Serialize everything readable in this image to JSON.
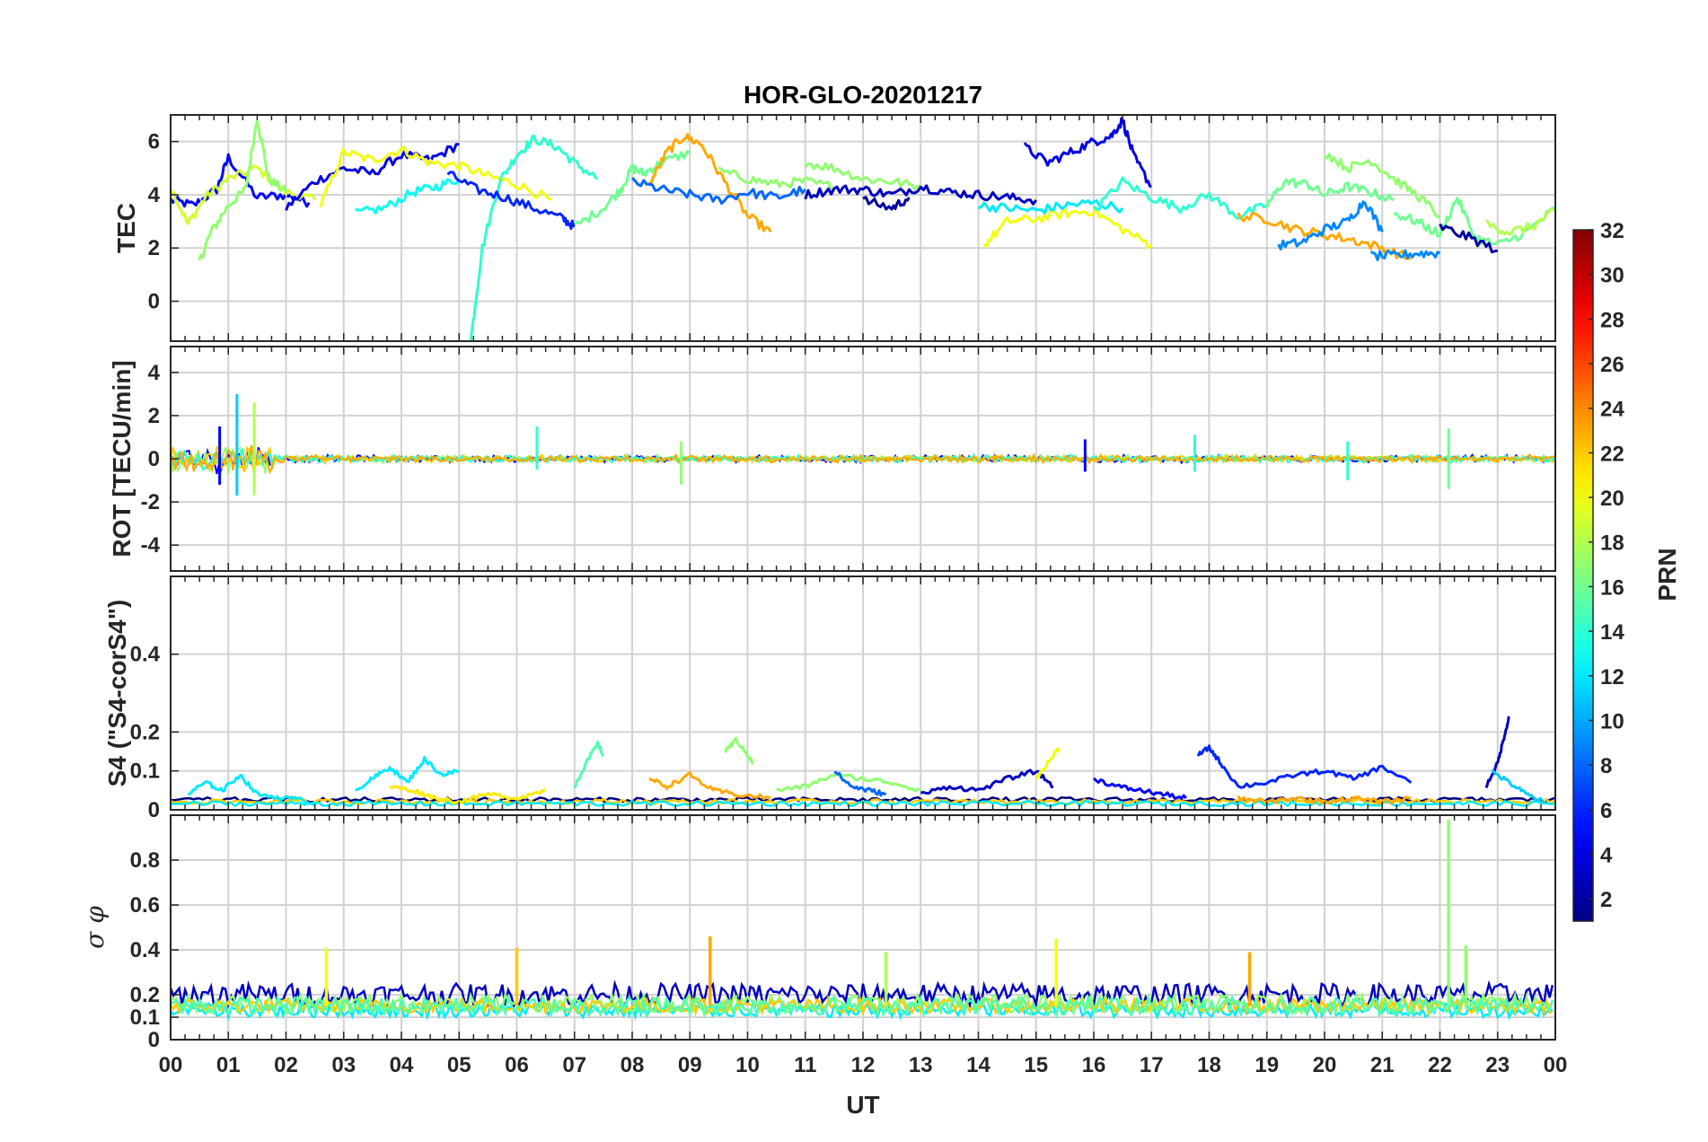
{
  "chart_data": {
    "type": "line",
    "title": "HOR-GLO-20201217",
    "xlabel": "UT",
    "x_unit": "hour",
    "x_tick_labels": [
      "00",
      "01",
      "02",
      "03",
      "04",
      "05",
      "06",
      "07",
      "08",
      "09",
      "10",
      "11",
      "12",
      "13",
      "14",
      "15",
      "16",
      "17",
      "18",
      "19",
      "20",
      "21",
      "22",
      "23",
      "00"
    ],
    "colorbar": {
      "label": "PRN",
      "range": [
        1,
        32
      ],
      "tick_labels": [
        "2",
        "4",
        "6",
        "8",
        "10",
        "12",
        "14",
        "16",
        "18",
        "20",
        "22",
        "24",
        "26",
        "28",
        "30",
        "32"
      ],
      "colormap": "jet"
    },
    "panels": [
      {
        "name": "tec",
        "ylabel": "TEC",
        "ylim": [
          -1.5,
          7
        ],
        "yticks": [
          0,
          2,
          4,
          6
        ],
        "ytick_labels": [
          "0",
          "2",
          "4",
          "6"
        ],
        "series": [
          {
            "prn": 5,
            "x": [
              0.0,
              0.4,
              0.8,
              1.0,
              1.5,
              2.0,
              2.4
            ],
            "y": [
              3.8,
              3.6,
              4.2,
              5.4,
              3.9,
              4.0,
              3.7
            ]
          },
          {
            "prn": 19,
            "x": [
              0.0,
              0.3,
              0.6,
              1.0,
              1.5,
              2.0,
              2.5
            ],
            "y": [
              4.3,
              2.9,
              3.9,
              4.6,
              5.0,
              4.1,
              3.8
            ]
          },
          {
            "prn": 17,
            "x": [
              0.5,
              0.7,
              1.0,
              1.3,
              1.5,
              1.7,
              2.0
            ],
            "y": [
              1.5,
              2.6,
              3.6,
              4.2,
              6.9,
              4.6,
              4.1
            ]
          },
          {
            "prn": 4,
            "x": [
              2.0,
              2.5,
              3.0,
              3.5,
              4.0,
              4.5,
              5.0
            ],
            "y": [
              3.5,
              4.5,
              5.0,
              4.8,
              5.5,
              5.3,
              5.9
            ]
          },
          {
            "prn": 20,
            "x": [
              2.6,
              3.0,
              3.5,
              4.0,
              4.5,
              5.0,
              5.5,
              6.0,
              6.6
            ],
            "y": [
              3.6,
              5.6,
              5.3,
              5.7,
              5.2,
              5.1,
              4.7,
              4.4,
              3.8
            ]
          },
          {
            "prn": 13,
            "x": [
              3.2,
              3.7,
              4.2,
              4.6,
              5.0
            ],
            "y": [
              3.3,
              3.5,
              4.1,
              4.3,
              4.6
            ]
          },
          {
            "prn": 14,
            "x": [
              5.2,
              5.4,
              5.7,
              6.0,
              6.3,
              6.7,
              7.0,
              7.4
            ],
            "y": [
              -1.5,
              2.0,
              4.5,
              5.5,
              6.1,
              5.8,
              5.2,
              4.6
            ]
          },
          {
            "prn": 6,
            "x": [
              4.8,
              5.3,
              5.8,
              6.3,
              6.8,
              7.0
            ],
            "y": [
              4.8,
              4.2,
              3.9,
              3.5,
              3.1,
              2.8
            ]
          },
          {
            "prn": 16,
            "x": [
              7.0,
              7.5,
              7.8,
              8.0,
              8.2,
              8.5,
              9.0
            ],
            "y": [
              2.8,
              3.5,
              4.2,
              5.0,
              4.8,
              5.2,
              5.6
            ]
          },
          {
            "prn": 23,
            "x": [
              8.3,
              8.6,
              8.9,
              9.2,
              9.6,
              10.0,
              10.4
            ],
            "y": [
              4.4,
              5.6,
              6.2,
              5.9,
              4.5,
              3.2,
              2.6
            ]
          },
          {
            "prn": 8,
            "x": [
              8.0,
              8.5,
              9.0,
              9.5,
              10.0,
              10.5,
              11.0
            ],
            "y": [
              4.5,
              4.2,
              4.0,
              3.8,
              4.1,
              3.9,
              4.2
            ]
          },
          {
            "prn": 17,
            "x": [
              9.5,
              10.0,
              10.5,
              11.0,
              11.5
            ],
            "y": [
              4.9,
              4.6,
              4.4,
              4.5,
              4.3
            ]
          },
          {
            "prn": 17,
            "x": [
              11.0,
              11.5,
              12.0,
              12.5,
              13.0
            ],
            "y": [
              5.2,
              5.0,
              4.6,
              4.5,
              4.3
            ]
          },
          {
            "prn": 3,
            "x": [
              11.0,
              11.5,
              12.0,
              12.5,
              13.0,
              13.5,
              14.0,
              14.5,
              15.0
            ],
            "y": [
              4.0,
              4.2,
              4.2,
              4.0,
              4.3,
              4.1,
              4.0,
              3.9,
              3.8
            ]
          },
          {
            "prn": 2,
            "x": [
              12.0,
              12.5,
              12.8
            ],
            "y": [
              3.8,
              3.5,
              3.9
            ]
          },
          {
            "prn": 4,
            "x": [
              14.8,
              15.2,
              15.6,
              16.0,
              16.3,
              16.5,
              16.7,
              17.0
            ],
            "y": [
              5.8,
              5.2,
              5.6,
              6.0,
              6.2,
              6.8,
              5.4,
              4.3
            ]
          },
          {
            "prn": 20,
            "x": [
              14.1,
              14.5,
              15.0,
              15.5,
              16.0,
              16.5,
              17.0
            ],
            "y": [
              2.1,
              3.0,
              3.1,
              3.3,
              3.4,
              2.7,
              2.1
            ]
          },
          {
            "prn": 12,
            "x": [
              14.0,
              14.5,
              15.0,
              15.5,
              16.0,
              16.5
            ],
            "y": [
              3.6,
              3.5,
              3.4,
              3.6,
              3.7,
              3.5
            ]
          },
          {
            "prn": 14,
            "x": [
              16.0,
              16.5,
              17.0,
              17.5,
              18.0,
              18.5,
              19.0
            ],
            "y": [
              3.4,
              4.5,
              3.9,
              3.5,
              4.0,
              3.2,
              3.6
            ]
          },
          {
            "prn": 16,
            "x": [
              19.0,
              19.3,
              19.7,
              20.0,
              20.4,
              20.8,
              21.2
            ],
            "y": [
              3.6,
              4.5,
              4.4,
              4.0,
              4.3,
              4.1,
              3.8
            ]
          },
          {
            "prn": 23,
            "x": [
              18.5,
              19.0,
              19.5,
              20.0,
              20.5,
              21.0,
              21.5
            ],
            "y": [
              3.2,
              3.1,
              2.7,
              2.5,
              2.3,
              2.0,
              1.6
            ]
          },
          {
            "prn": 9,
            "x": [
              19.2,
              19.6,
              20.0,
              20.4,
              20.7,
              21.0
            ],
            "y": [
              2.1,
              2.2,
              2.7,
              3.0,
              3.8,
              2.6
            ]
          },
          {
            "prn": 17,
            "x": [
              20.0,
              20.4,
              20.8,
              21.2,
              21.6,
              22.0
            ],
            "y": [
              5.6,
              5.0,
              5.3,
              4.6,
              4.0,
              3.2
            ]
          },
          {
            "prn": 9,
            "x": [
              20.8,
              21.2,
              21.6,
              22.0
            ],
            "y": [
              1.7,
              1.7,
              1.8,
              1.8
            ]
          },
          {
            "prn": 16,
            "x": [
              21.2,
              21.6,
              22.0,
              22.3,
              22.6,
              23.0,
              23.5,
              24.0
            ],
            "y": [
              3.3,
              3.0,
              2.5,
              3.9,
              2.4,
              2.1,
              2.6,
              3.5
            ]
          },
          {
            "prn": 2,
            "x": [
              22.0,
              22.5,
              23.0
            ],
            "y": [
              2.8,
              2.4,
              1.9
            ]
          },
          {
            "prn": 18,
            "x": [
              22.8,
              23.2,
              23.6,
              24.0
            ],
            "y": [
              2.9,
              2.6,
              2.8,
              3.4
            ]
          }
        ]
      },
      {
        "name": "rot",
        "ylabel": "ROT [TECU/min]",
        "ylim": [
          -5.2,
          5.2
        ],
        "yticks": [
          -4,
          -2,
          0,
          2,
          4
        ],
        "ytick_labels": [
          "-4",
          "-2",
          "0",
          "2",
          "4"
        ],
        "spikes": [
          {
            "prn": 11,
            "x": 1.15,
            "min": -1.7,
            "max": 3.0
          },
          {
            "prn": 18,
            "x": 1.45,
            "min": -1.7,
            "max": 2.6
          },
          {
            "prn": 5,
            "x": 0.85,
            "min": -1.2,
            "max": 1.5
          },
          {
            "prn": 14,
            "x": 6.35,
            "min": -0.5,
            "max": 1.5
          },
          {
            "prn": 17,
            "x": 8.85,
            "min": -1.2,
            "max": 0.8
          },
          {
            "prn": 5,
            "x": 15.85,
            "min": -0.6,
            "max": 0.9
          },
          {
            "prn": 14,
            "x": 17.75,
            "min": -0.6,
            "max": 1.1
          },
          {
            "prn": 14,
            "x": 20.4,
            "min": -1.0,
            "max": 0.8
          },
          {
            "prn": 16,
            "x": 22.15,
            "min": -1.4,
            "max": 1.4
          }
        ]
      },
      {
        "name": "s4",
        "ylabel": "S4 (\"S4-corS4\")",
        "ylim": [
          0,
          0.6
        ],
        "yticks": [
          0,
          0.1,
          0.2,
          0.4
        ],
        "ytick_labels": [
          "0",
          "0.1",
          "0.2",
          "0.4"
        ],
        "series": [
          {
            "prn": 12,
            "x": [
              0.3,
              0.6,
              0.9,
              1.2,
              1.5,
              2.0,
              2.5
            ],
            "y": [
              0.04,
              0.07,
              0.05,
              0.09,
              0.04,
              0.03,
              0.02
            ]
          },
          {
            "prn": 12,
            "x": [
              3.2,
              3.5,
              3.8,
              4.1,
              4.4,
              4.7,
              5.0
            ],
            "y": [
              0.05,
              0.08,
              0.11,
              0.07,
              0.13,
              0.09,
              0.1
            ]
          },
          {
            "prn": 21,
            "x": [
              3.8,
              4.2,
              4.6,
              5.0,
              5.5,
              6.0,
              6.5
            ],
            "y": [
              0.06,
              0.05,
              0.03,
              0.02,
              0.04,
              0.03,
              0.05
            ]
          },
          {
            "prn": 15,
            "x": [
              7.0,
              7.2,
              7.4,
              7.5
            ],
            "y": [
              0.06,
              0.12,
              0.17,
              0.14
            ]
          },
          {
            "prn": 23,
            "x": [
              8.3,
              8.6,
              9.0,
              9.4,
              9.8,
              10.4
            ],
            "y": [
              0.08,
              0.06,
              0.09,
              0.05,
              0.04,
              0.03
            ]
          },
          {
            "prn": 17,
            "x": [
              9.6,
              9.8,
              10.0,
              10.1
            ],
            "y": [
              0.15,
              0.18,
              0.14,
              0.12
            ]
          },
          {
            "prn": 17,
            "x": [
              10.5,
              11.0,
              11.5,
              12.0,
              12.5,
              13.0
            ],
            "y": [
              0.05,
              0.06,
              0.09,
              0.08,
              0.07,
              0.05
            ]
          },
          {
            "prn": 8,
            "x": [
              11.5,
              11.8,
              12.1,
              12.4
            ],
            "y": [
              0.1,
              0.06,
              0.05,
              0.04
            ]
          },
          {
            "prn": 3,
            "x": [
              13.0,
              13.5,
              14.0,
              14.5,
              15.0,
              15.3
            ],
            "y": [
              0.04,
              0.06,
              0.05,
              0.08,
              0.1,
              0.06
            ]
          },
          {
            "prn": 20,
            "x": [
              15.0,
              15.2,
              15.4
            ],
            "y": [
              0.08,
              0.12,
              0.16
            ]
          },
          {
            "prn": 5,
            "x": [
              16.0,
              16.4,
              16.8,
              17.2,
              17.6
            ],
            "y": [
              0.08,
              0.06,
              0.05,
              0.04,
              0.03
            ]
          },
          {
            "prn": 6,
            "x": [
              17.8,
              18.0,
              18.2,
              18.5,
              19.0,
              19.5,
              20.0,
              20.5,
              21.0,
              21.5
            ],
            "y": [
              0.14,
              0.16,
              0.12,
              0.06,
              0.07,
              0.09,
              0.1,
              0.08,
              0.11,
              0.07
            ]
          },
          {
            "prn": 23,
            "x": [
              18.5,
              19.0,
              19.5,
              20.0,
              20.5,
              21.0,
              21.5
            ],
            "y": [
              0.03,
              0.02,
              0.03,
              0.02,
              0.03,
              0.02,
              0.03
            ]
          },
          {
            "prn": 3,
            "x": [
              22.8,
              23.0,
              23.1,
              23.2
            ],
            "y": [
              0.06,
              0.12,
              0.18,
              0.24
            ]
          },
          {
            "prn": 11,
            "x": [
              22.9,
              23.2,
              23.5,
              23.8
            ],
            "y": [
              0.1,
              0.07,
              0.04,
              0.02
            ]
          }
        ]
      },
      {
        "name": "sigma_phi",
        "ylabel": "σ φ",
        "ylim": [
          0,
          1
        ],
        "yticks": [
          0,
          0.1,
          0.2,
          0.4,
          0.6,
          0.8
        ],
        "ytick_labels": [
          "0",
          "0.1",
          "0.2",
          "0.4",
          "0.6",
          "0.8"
        ],
        "baseline": 0.15,
        "spikes": [
          {
            "prn": 20,
            "x": 2.7,
            "max": 0.41
          },
          {
            "prn": 22,
            "x": 6.0,
            "max": 0.41
          },
          {
            "prn": 23,
            "x": 9.35,
            "max": 0.46
          },
          {
            "prn": 18,
            "x": 12.4,
            "max": 0.39
          },
          {
            "prn": 20,
            "x": 15.35,
            "max": 0.45
          },
          {
            "prn": 23,
            "x": 18.7,
            "max": 0.39
          },
          {
            "prn": 17,
            "x": 22.15,
            "max": 0.98
          },
          {
            "prn": 17,
            "x": 22.45,
            "max": 0.42
          }
        ]
      }
    ]
  }
}
